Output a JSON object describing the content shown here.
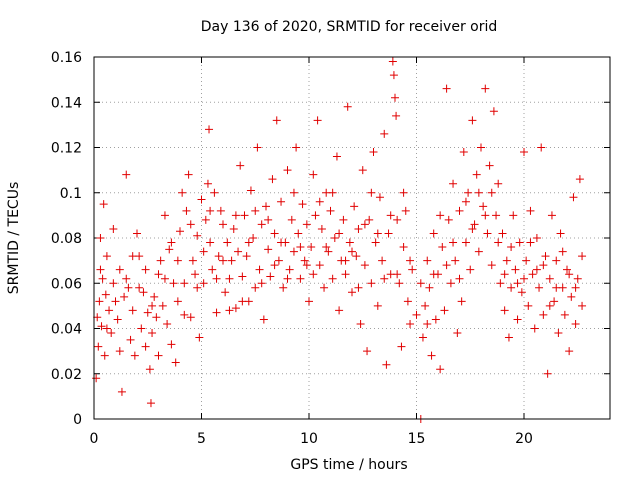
{
  "chart_data": {
    "type": "scatter",
    "title": "Day 136 of 2020, SRMTID for receiver orid",
    "xlabel": "GPS time / hours",
    "ylabel": "SRMTID / TECUs",
    "xlim": [
      0,
      24
    ],
    "ylim": [
      0,
      0.16
    ],
    "x_ticks": [
      "0",
      "5",
      "10",
      "15",
      "20"
    ],
    "y_ticks": [
      "0",
      "0.02",
      "0.04",
      "0.06",
      "0.08",
      "0.1",
      "0.12",
      "0.14",
      "0.16"
    ],
    "grid": true,
    "marker": "plus",
    "color": "#e00000",
    "series": [
      {
        "name": "SRMTID",
        "points": [
          [
            0.1,
            0.018
          ],
          [
            0.15,
            0.045
          ],
          [
            0.2,
            0.032
          ],
          [
            0.25,
            0.052
          ],
          [
            0.3,
            0.08
          ],
          [
            0.35,
            0.041
          ],
          [
            0.4,
            0.062
          ],
          [
            0.45,
            0.095
          ],
          [
            0.5,
            0.028
          ],
          [
            0.55,
            0.055
          ],
          [
            0.6,
            0.072
          ],
          [
            0.7,
            0.048
          ],
          [
            0.8,
            0.038
          ],
          [
            0.9,
            0.06
          ],
          [
            1.0,
            0.052
          ],
          [
            1.1,
            0.044
          ],
          [
            1.2,
            0.066
          ],
          [
            1.3,
            0.012
          ],
          [
            1.4,
            0.054
          ],
          [
            1.5,
            0.108
          ],
          [
            1.6,
            0.058
          ],
          [
            1.7,
            0.035
          ],
          [
            1.8,
            0.048
          ],
          [
            1.9,
            0.028
          ],
          [
            2.0,
            0.082
          ],
          [
            2.1,
            0.072
          ],
          [
            2.2,
            0.04
          ],
          [
            2.3,
            0.056
          ],
          [
            2.4,
            0.032
          ],
          [
            2.5,
            0.047
          ],
          [
            2.6,
            0.022
          ],
          [
            2.65,
            0.007
          ],
          [
            2.7,
            0.038
          ],
          [
            2.8,
            0.054
          ],
          [
            2.9,
            0.045
          ],
          [
            3.0,
            0.064
          ],
          [
            3.1,
            0.07
          ],
          [
            3.2,
            0.05
          ],
          [
            3.3,
            0.09
          ],
          [
            3.4,
            0.042
          ],
          [
            3.5,
            0.075
          ],
          [
            3.6,
            0.033
          ],
          [
            3.7,
            0.06
          ],
          [
            3.8,
            0.025
          ],
          [
            3.9,
            0.052
          ],
          [
            4.0,
            0.083
          ],
          [
            4.1,
            0.1
          ],
          [
            4.2,
            0.06
          ],
          [
            4.3,
            0.092
          ],
          [
            4.4,
            0.108
          ],
          [
            4.5,
            0.045
          ],
          [
            4.6,
            0.07
          ],
          [
            4.7,
            0.064
          ],
          [
            4.8,
            0.081
          ],
          [
            4.9,
            0.036
          ],
          [
            5.0,
            0.097
          ],
          [
            5.1,
            0.06
          ],
          [
            5.2,
            0.088
          ],
          [
            5.3,
            0.104
          ],
          [
            5.35,
            0.128
          ],
          [
            5.4,
            0.078
          ],
          [
            5.5,
            0.066
          ],
          [
            5.6,
            0.1
          ],
          [
            5.7,
            0.047
          ],
          [
            5.8,
            0.072
          ],
          [
            5.9,
            0.092
          ],
          [
            6.0,
            0.086
          ],
          [
            6.1,
            0.056
          ],
          [
            6.2,
            0.078
          ],
          [
            6.3,
            0.062
          ],
          [
            6.4,
            0.07
          ],
          [
            6.5,
            0.084
          ],
          [
            6.6,
            0.049
          ],
          [
            6.7,
            0.074
          ],
          [
            6.8,
            0.112
          ],
          [
            6.9,
            0.063
          ],
          [
            7.0,
            0.09
          ],
          [
            7.1,
            0.072
          ],
          [
            7.2,
            0.052
          ],
          [
            7.3,
            0.101
          ],
          [
            7.4,
            0.08
          ],
          [
            7.5,
            0.058
          ],
          [
            7.6,
            0.12
          ],
          [
            7.7,
            0.066
          ],
          [
            7.8,
            0.086
          ],
          [
            7.9,
            0.044
          ],
          [
            8.0,
            0.094
          ],
          [
            8.1,
            0.075
          ],
          [
            8.2,
            0.063
          ],
          [
            8.3,
            0.106
          ],
          [
            8.4,
            0.082
          ],
          [
            8.5,
            0.132
          ],
          [
            8.6,
            0.07
          ],
          [
            8.7,
            0.096
          ],
          [
            8.8,
            0.058
          ],
          [
            8.9,
            0.078
          ],
          [
            9.0,
            0.11
          ],
          [
            9.1,
            0.066
          ],
          [
            9.2,
            0.088
          ],
          [
            9.3,
            0.074
          ],
          [
            9.4,
            0.12
          ],
          [
            9.5,
            0.082
          ],
          [
            9.6,
            0.062
          ],
          [
            9.7,
            0.095
          ],
          [
            9.8,
            0.07
          ],
          [
            9.9,
            0.086
          ],
          [
            10.0,
            0.052
          ],
          [
            10.1,
            0.076
          ],
          [
            10.2,
            0.108
          ],
          [
            10.3,
            0.09
          ],
          [
            10.4,
            0.132
          ],
          [
            10.5,
            0.068
          ],
          [
            10.6,
            0.084
          ],
          [
            10.7,
            0.058
          ],
          [
            10.8,
            0.1
          ],
          [
            10.9,
            0.074
          ],
          [
            11.0,
            0.092
          ],
          [
            11.1,
            0.062
          ],
          [
            11.2,
            0.08
          ],
          [
            11.3,
            0.116
          ],
          [
            11.4,
            0.048
          ],
          [
            11.5,
            0.07
          ],
          [
            11.6,
            0.088
          ],
          [
            11.7,
            0.064
          ],
          [
            11.8,
            0.138
          ],
          [
            11.9,
            0.078
          ],
          [
            12.0,
            0.056
          ],
          [
            12.1,
            0.094
          ],
          [
            12.2,
            0.072
          ],
          [
            12.3,
            0.084
          ],
          [
            12.4,
            0.042
          ],
          [
            12.5,
            0.11
          ],
          [
            12.6,
            0.068
          ],
          [
            12.7,
            0.03
          ],
          [
            12.8,
            0.088
          ],
          [
            12.9,
            0.06
          ],
          [
            13.0,
            0.118
          ],
          [
            13.1,
            0.078
          ],
          [
            13.2,
            0.05
          ],
          [
            13.3,
            0.098
          ],
          [
            13.4,
            0.07
          ],
          [
            13.5,
            0.126
          ],
          [
            13.6,
            0.024
          ],
          [
            13.7,
            0.082
          ],
          [
            13.8,
            0.064
          ],
          [
            13.9,
            0.158
          ],
          [
            13.95,
            0.152
          ],
          [
            14.0,
            0.142
          ],
          [
            14.05,
            0.134
          ],
          [
            14.1,
            0.088
          ],
          [
            14.2,
            0.06
          ],
          [
            14.3,
            0.032
          ],
          [
            14.4,
            0.076
          ],
          [
            14.5,
            0.092
          ],
          [
            14.6,
            0.052
          ],
          [
            14.7,
            0.042
          ],
          [
            14.8,
            0.066
          ],
          [
            15.0,
            0.046
          ],
          [
            15.2,
            0.06
          ],
          [
            15.3,
            0.036
          ],
          [
            15.4,
            0.05
          ],
          [
            15.5,
            0.07
          ],
          [
            15.6,
            0.058
          ],
          [
            15.7,
            0.028
          ],
          [
            15.8,
            0.082
          ],
          [
            15.9,
            0.044
          ],
          [
            16.0,
            0.064
          ],
          [
            16.1,
            0.022
          ],
          [
            16.2,
            0.076
          ],
          [
            16.3,
            0.048
          ],
          [
            16.4,
            0.146
          ],
          [
            16.5,
            0.088
          ],
          [
            16.6,
            0.06
          ],
          [
            16.7,
            0.104
          ],
          [
            16.8,
            0.07
          ],
          [
            16.9,
            0.038
          ],
          [
            17.0,
            0.092
          ],
          [
            17.1,
            0.052
          ],
          [
            17.2,
            0.118
          ],
          [
            17.3,
            0.078
          ],
          [
            17.4,
            0.1
          ],
          [
            17.5,
            0.066
          ],
          [
            17.6,
            0.132
          ],
          [
            17.7,
            0.086
          ],
          [
            17.8,
            0.108
          ],
          [
            17.9,
            0.074
          ],
          [
            18.0,
            0.12
          ],
          [
            18.1,
            0.094
          ],
          [
            18.2,
            0.146
          ],
          [
            18.3,
            0.082
          ],
          [
            18.4,
            0.112
          ],
          [
            18.5,
            0.068
          ],
          [
            18.6,
            0.136
          ],
          [
            18.7,
            0.09
          ],
          [
            18.8,
            0.104
          ],
          [
            18.9,
            0.06
          ],
          [
            19.0,
            0.082
          ],
          [
            19.1,
            0.048
          ],
          [
            19.2,
            0.07
          ],
          [
            19.3,
            0.036
          ],
          [
            19.4,
            0.058
          ],
          [
            19.5,
            0.09
          ],
          [
            19.6,
            0.066
          ],
          [
            19.7,
            0.044
          ],
          [
            19.8,
            0.078
          ],
          [
            19.9,
            0.056
          ],
          [
            20.0,
            0.118
          ],
          [
            20.1,
            0.07
          ],
          [
            20.2,
            0.05
          ],
          [
            20.3,
            0.092
          ],
          [
            20.4,
            0.064
          ],
          [
            20.5,
            0.04
          ],
          [
            20.6,
            0.08
          ],
          [
            20.7,
            0.058
          ],
          [
            20.8,
            0.12
          ],
          [
            20.9,
            0.046
          ],
          [
            21.0,
            0.072
          ],
          [
            21.1,
            0.02
          ],
          [
            21.2,
            0.062
          ],
          [
            21.3,
            0.09
          ],
          [
            21.4,
            0.052
          ],
          [
            21.5,
            0.07
          ],
          [
            21.6,
            0.038
          ],
          [
            21.7,
            0.082
          ],
          [
            21.8,
            0.058
          ],
          [
            21.9,
            0.046
          ],
          [
            22.0,
            0.066
          ],
          [
            22.1,
            0.03
          ],
          [
            22.2,
            0.054
          ],
          [
            22.3,
            0.098
          ],
          [
            22.4,
            0.042
          ],
          [
            22.5,
            0.062
          ],
          [
            22.6,
            0.106
          ],
          [
            22.7,
            0.05
          ],
          [
            0.3,
            0.066
          ],
          [
            0.6,
            0.04
          ],
          [
            0.9,
            0.084
          ],
          [
            1.2,
            0.03
          ],
          [
            1.5,
            0.062
          ],
          [
            1.8,
            0.072
          ],
          [
            2.1,
            0.058
          ],
          [
            2.4,
            0.066
          ],
          [
            2.7,
            0.05
          ],
          [
            3.0,
            0.028
          ],
          [
            3.3,
            0.062
          ],
          [
            3.6,
            0.078
          ],
          [
            3.9,
            0.07
          ],
          [
            4.2,
            0.046
          ],
          [
            4.5,
            0.086
          ],
          [
            4.8,
            0.058
          ],
          [
            5.1,
            0.074
          ],
          [
            5.4,
            0.092
          ],
          [
            5.7,
            0.062
          ],
          [
            6.0,
            0.07
          ],
          [
            6.3,
            0.048
          ],
          [
            6.6,
            0.09
          ],
          [
            6.9,
            0.052
          ],
          [
            7.2,
            0.078
          ],
          [
            7.5,
            0.092
          ],
          [
            7.8,
            0.06
          ],
          [
            8.1,
            0.088
          ],
          [
            8.4,
            0.068
          ],
          [
            8.7,
            0.078
          ],
          [
            9.0,
            0.062
          ],
          [
            9.3,
            0.1
          ],
          [
            9.6,
            0.076
          ],
          [
            9.9,
            0.068
          ],
          [
            10.2,
            0.064
          ],
          [
            10.5,
            0.096
          ],
          [
            10.8,
            0.076
          ],
          [
            11.1,
            0.1
          ],
          [
            11.4,
            0.082
          ],
          [
            11.7,
            0.07
          ],
          [
            12.0,
            0.074
          ],
          [
            12.3,
            0.058
          ],
          [
            12.6,
            0.086
          ],
          [
            12.9,
            0.1
          ],
          [
            13.2,
            0.082
          ],
          [
            13.5,
            0.062
          ],
          [
            13.8,
            0.09
          ],
          [
            14.1,
            0.064
          ],
          [
            14.4,
            0.1
          ],
          [
            14.7,
            0.07
          ],
          [
            15.5,
            0.042
          ],
          [
            15.8,
            0.064
          ],
          [
            16.1,
            0.09
          ],
          [
            16.4,
            0.068
          ],
          [
            16.7,
            0.078
          ],
          [
            17.0,
            0.062
          ],
          [
            17.3,
            0.096
          ],
          [
            17.6,
            0.084
          ],
          [
            17.9,
            0.1
          ],
          [
            18.2,
            0.09
          ],
          [
            18.5,
            0.1
          ],
          [
            18.8,
            0.078
          ],
          [
            19.1,
            0.064
          ],
          [
            19.4,
            0.076
          ],
          [
            19.7,
            0.06
          ],
          [
            20.0,
            0.062
          ],
          [
            20.3,
            0.078
          ],
          [
            20.6,
            0.066
          ],
          [
            20.9,
            0.068
          ],
          [
            21.2,
            0.05
          ],
          [
            21.5,
            0.058
          ],
          [
            21.8,
            0.074
          ],
          [
            22.1,
            0.064
          ],
          [
            22.4,
            0.058
          ],
          [
            22.7,
            0.072
          ],
          [
            15.2,
            0.0
          ]
        ]
      }
    ]
  }
}
